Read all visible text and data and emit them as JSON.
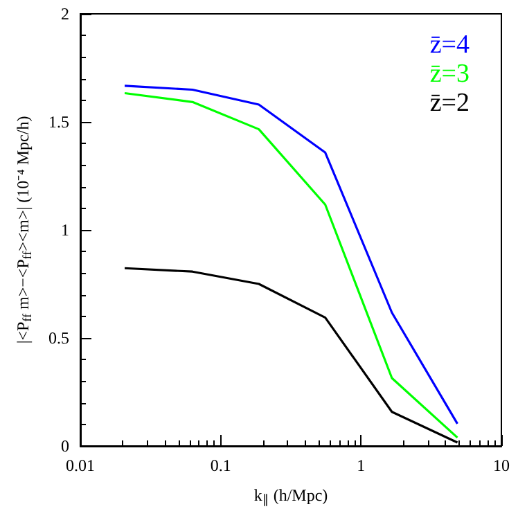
{
  "chart_data": {
    "type": "line",
    "xlabel": "k$_{∥}$ (h/Mpc)",
    "ylabel": "|<P$_{ff}$ m>−<P$_{ff}$><m>| (10⁻⁴ Mpc/h)",
    "x": [
      0.0207,
      0.063,
      0.187,
      0.556,
      1.66,
      4.86
    ],
    "series": [
      {
        "name": "z̄=4",
        "color": "#0000ff",
        "values": [
          1.667,
          1.649,
          1.58,
          1.358,
          0.617,
          0.103
        ]
      },
      {
        "name": "z̄=3",
        "color": "#00ff00",
        "values": [
          1.633,
          1.592,
          1.466,
          1.117,
          0.314,
          0.039
        ]
      },
      {
        "name": "z̄=2",
        "color": "#000000",
        "values": [
          0.823,
          0.807,
          0.75,
          0.594,
          0.158,
          0.016
        ]
      }
    ],
    "log": "x",
    "xlim": [
      0.01,
      10
    ],
    "xticks": [
      0.01,
      0.1,
      1,
      10
    ],
    "ylim": [
      0,
      2
    ],
    "yticks": [
      0,
      0.5,
      1,
      1.5,
      2
    ],
    "grid": false,
    "legend": "top right",
    "marker": "none",
    "line_style": "solid"
  }
}
